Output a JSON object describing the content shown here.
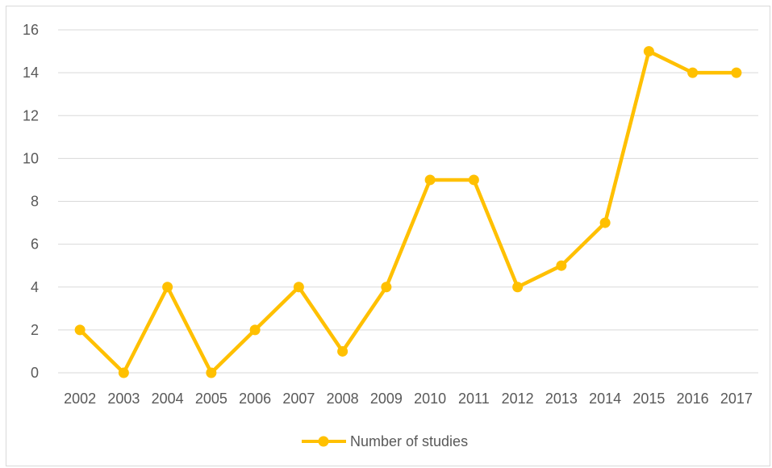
{
  "chart_data": {
    "type": "line",
    "title": "",
    "xlabel": "",
    "ylabel": "",
    "categories": [
      "2002",
      "2003",
      "2004",
      "2005",
      "2006",
      "2007",
      "2008",
      "2009",
      "2010",
      "2011",
      "2012",
      "2013",
      "2014",
      "2015",
      "2016",
      "2017"
    ],
    "series": [
      {
        "name": "Number of studies",
        "values": [
          2,
          0,
          4,
          0,
          2,
          4,
          1,
          4,
          9,
          9,
          4,
          5,
          7,
          15,
          14,
          14
        ],
        "color": "#FFC000",
        "marker": "circle"
      }
    ],
    "ylim": [
      0,
      16
    ],
    "yticks": [
      "0",
      "2",
      "4",
      "6",
      "8",
      "10",
      "12",
      "14",
      "16"
    ],
    "grid": "horizontal",
    "legend": "bottom"
  }
}
